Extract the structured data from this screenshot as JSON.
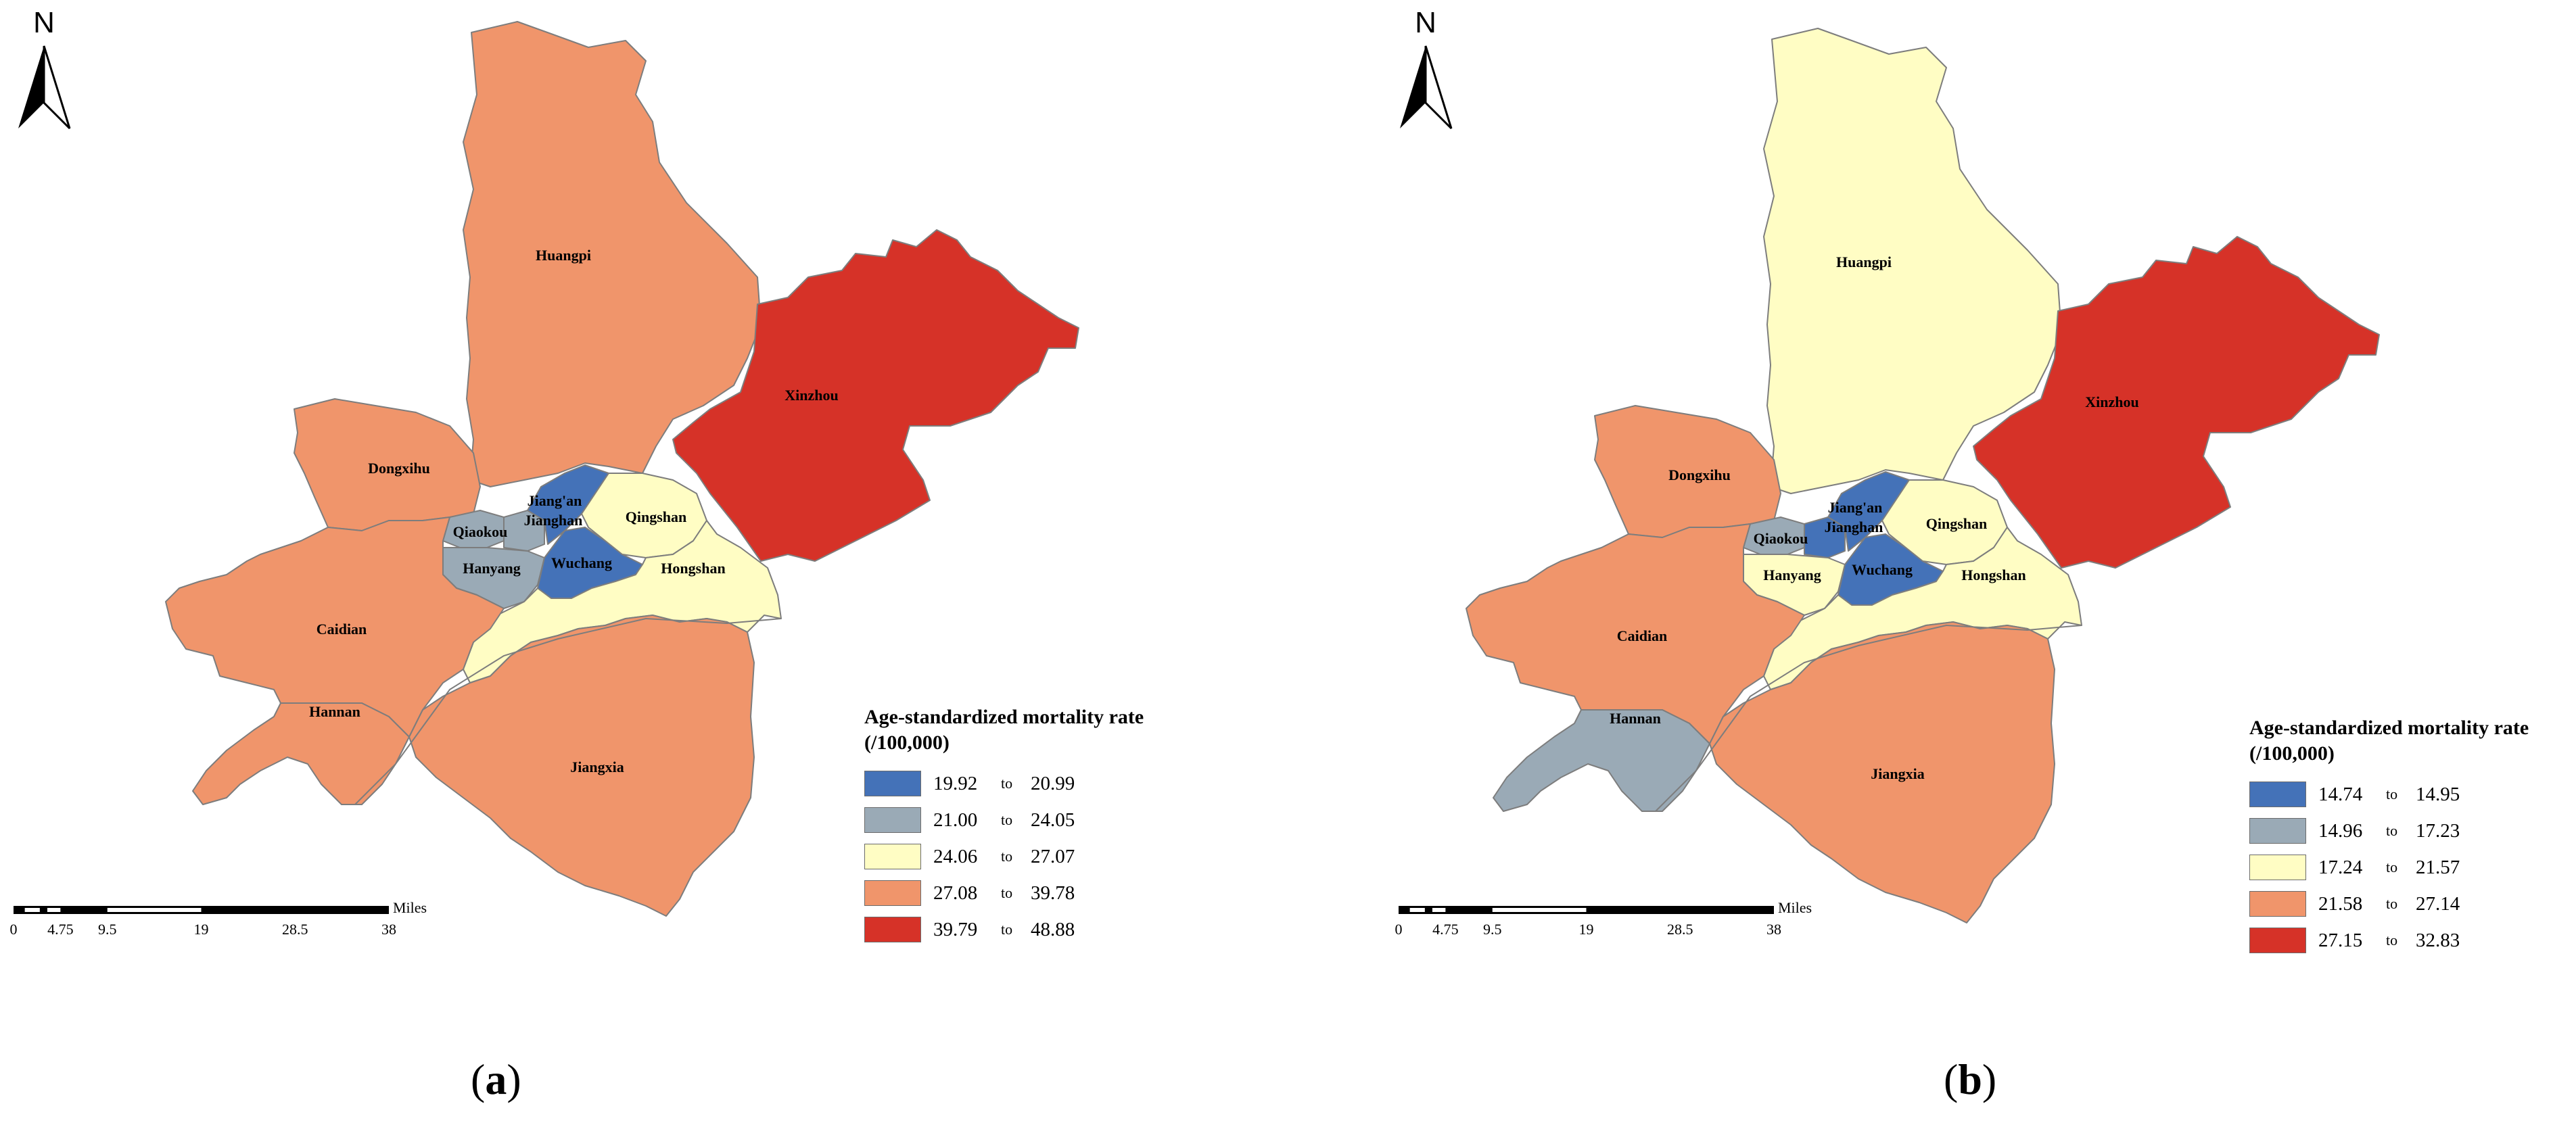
{
  "north_label": "N",
  "scale": {
    "unit": "Miles",
    "ticks": [
      "0",
      "4.75",
      "9.5",
      "19",
      "28.5",
      "38"
    ]
  },
  "colors": {
    "class1": "#4472b8",
    "class2": "#9aaab6",
    "class3": "#fffdc4",
    "class4": "#f0956b",
    "class5": "#d63228",
    "border": "#7d7d7d"
  },
  "districts": [
    "Huangpi",
    "Xinzhou",
    "Dongxihu",
    "Jiang'an",
    "Jianghan",
    "Qiaokou",
    "Hanyang",
    "Wuchang",
    "Qingshan",
    "Hongshan",
    "Caidian",
    "Hannan",
    "Jiangxia"
  ],
  "panels": [
    {
      "caption_letter": "a",
      "legend": {
        "title_line1": "Age-standardized mortality rate",
        "title_line2": "(/100,000)",
        "items": [
          {
            "low": "19.92",
            "to": "to",
            "high": "20.99",
            "color": "#4472b8"
          },
          {
            "low": "21.00",
            "to": "to",
            "high": "24.05",
            "color": "#9aaab6"
          },
          {
            "low": "24.06",
            "to": "to",
            "high": "27.07",
            "color": "#fffdc4"
          },
          {
            "low": "27.08",
            "to": "to",
            "high": "39.78",
            "color": "#f0956b"
          },
          {
            "low": "39.79",
            "to": "to",
            "high": "48.88",
            "color": "#d63228"
          }
        ]
      },
      "district_class": {
        "Huangpi": 4,
        "Xinzhou": 5,
        "Dongxihu": 4,
        "Jiang'an": 1,
        "Jianghan": 2,
        "Qiaokou": 2,
        "Hanyang": 2,
        "Wuchang": 1,
        "Qingshan": 3,
        "Hongshan": 3,
        "Caidian": 4,
        "Hannan": 4,
        "Jiangxia": 4
      }
    },
    {
      "caption_letter": "b",
      "legend": {
        "title_line1": "Age-standardized mortality rate",
        "title_line2": "(/100,000)",
        "items": [
          {
            "low": "14.74",
            "to": "to",
            "high": "14.95",
            "color": "#4472b8"
          },
          {
            "low": "14.96",
            "to": "to",
            "high": "17.23",
            "color": "#9aaab6"
          },
          {
            "low": "17.24",
            "to": "to",
            "high": "21.57",
            "color": "#fffdc4"
          },
          {
            "low": "21.58",
            "to": "to",
            "high": "27.14",
            "color": "#f0956b"
          },
          {
            "low": "27.15",
            "to": "to",
            "high": "32.83",
            "color": "#d63228"
          }
        ]
      },
      "district_class": {
        "Huangpi": 3,
        "Xinzhou": 5,
        "Dongxihu": 4,
        "Jiang'an": 1,
        "Jianghan": 1,
        "Qiaokou": 2,
        "Hanyang": 3,
        "Wuchang": 1,
        "Qingshan": 3,
        "Hongshan": 3,
        "Caidian": 4,
        "Hannan": 2,
        "Jiangxia": 4
      }
    }
  ]
}
